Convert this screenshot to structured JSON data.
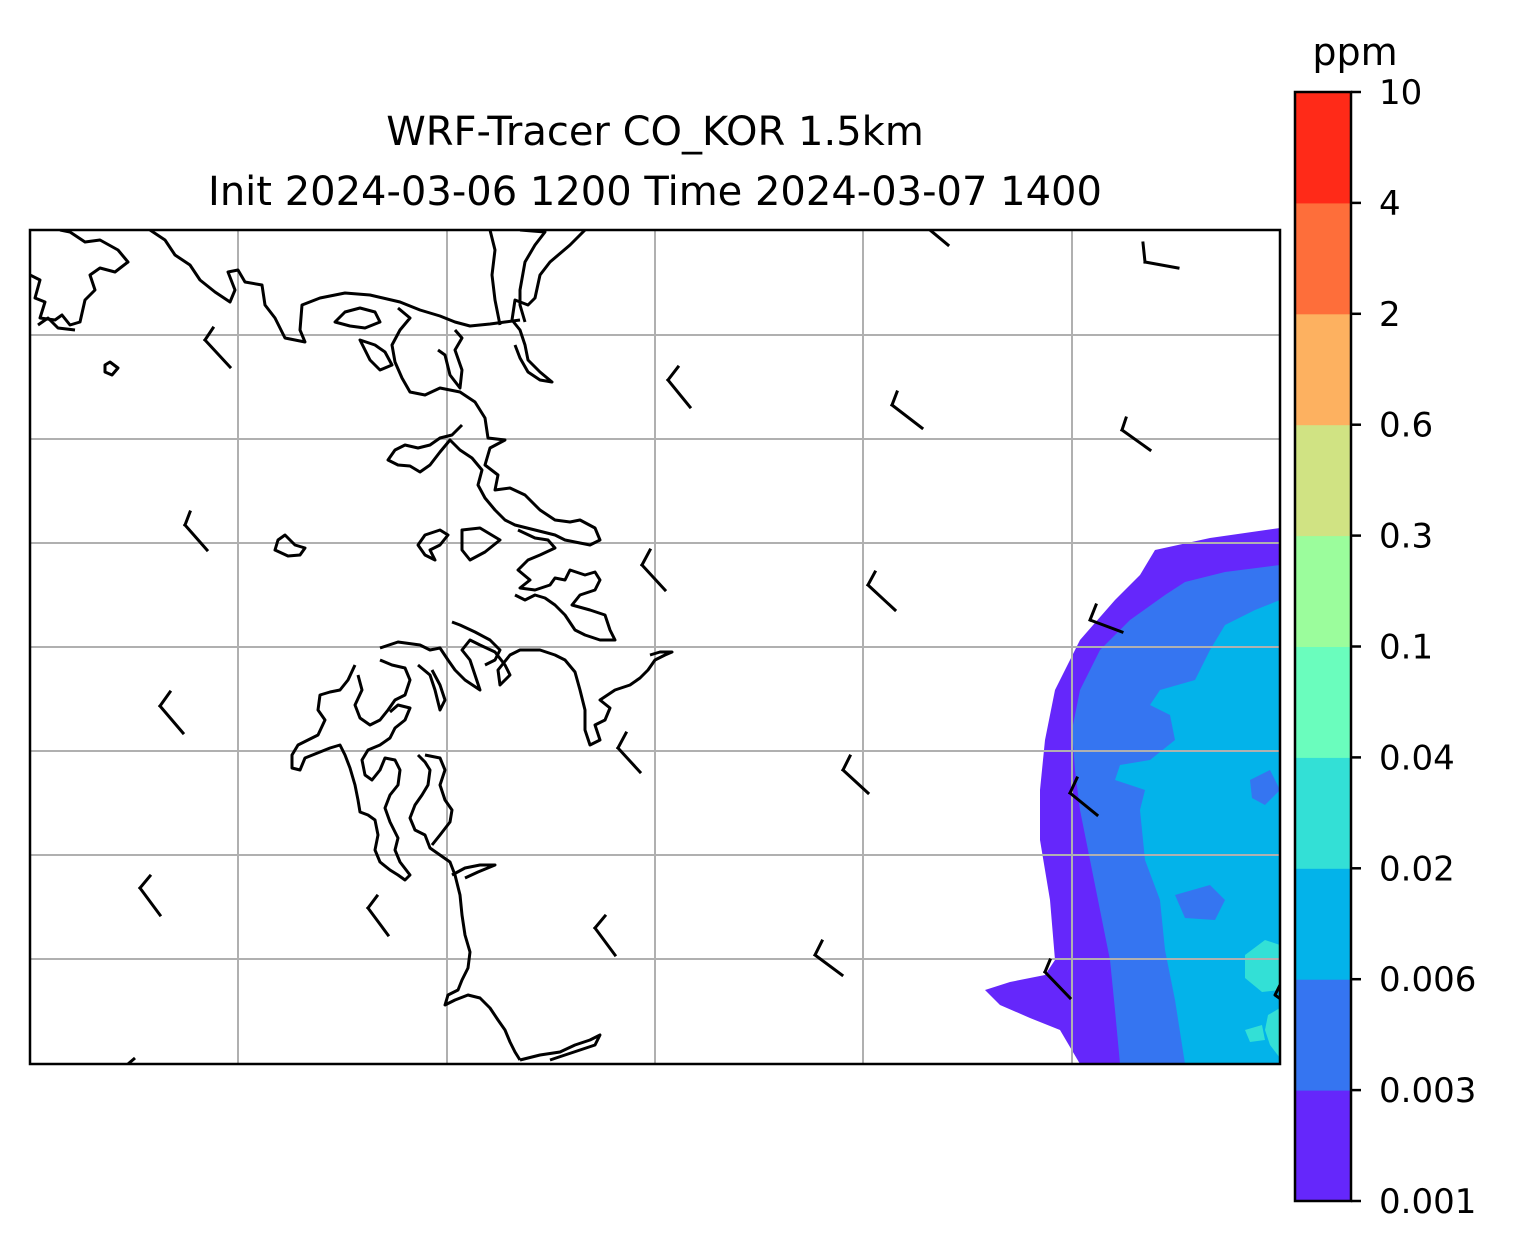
{
  "chart_data": {
    "type": "filled-contour map",
    "title": "WRF-Tracer CO_KOR 1.5km",
    "subtitle": "Init 2024-03-06 1200 Time 2024-03-07 1400",
    "colorbar": {
      "unit": "ppm",
      "levels": [
        "0.001",
        "0.003",
        "0.006",
        "0.02",
        "0.04",
        "0.1",
        "0.3",
        "0.6",
        "2",
        "4",
        "10"
      ],
      "colors": [
        "#6527fb",
        "#3575f1",
        "#03b3ea",
        "#33e0d6",
        "#6afdbd",
        "#9bfd9c",
        "#d0e383",
        "#fdb160",
        "#fe6e3a",
        "#ff2a18"
      ]
    },
    "grid": true,
    "features": [
      "coastlines",
      "wind barbs",
      "CO tracer plume near east edge of domain"
    ]
  }
}
